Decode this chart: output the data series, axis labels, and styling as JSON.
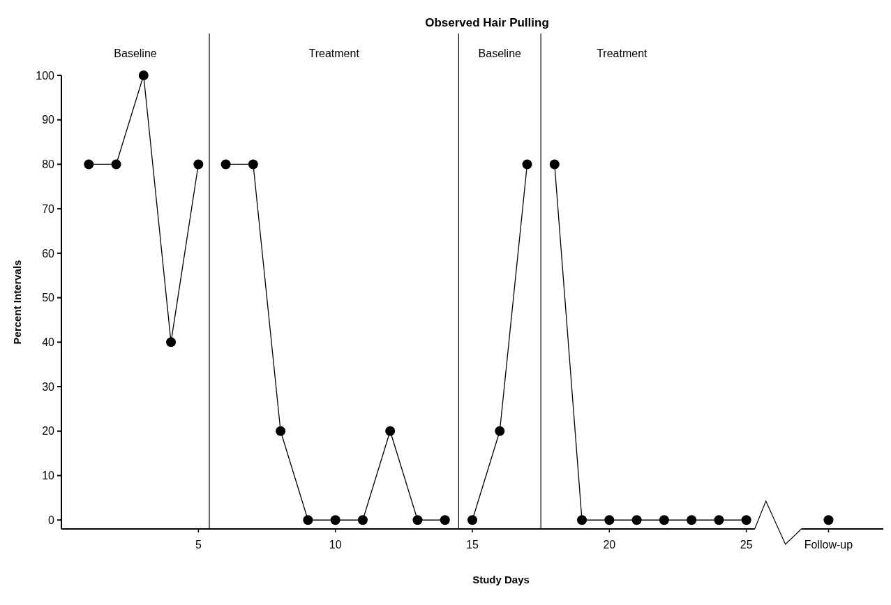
{
  "chart_data": {
    "type": "line",
    "title": "Observed Hair Pulling",
    "xlabel": "Study Days",
    "ylabel": "Percent Intervals",
    "xlim": [
      0,
      30
    ],
    "ylim": [
      -2,
      100
    ],
    "xticks": [
      5,
      10,
      15,
      20,
      25,
      {
        "value": 28,
        "label": "Follow-up"
      }
    ],
    "yticks": [
      0,
      10,
      20,
      30,
      40,
      50,
      60,
      70,
      80,
      90,
      100
    ],
    "series": [
      {
        "color": "#000000",
        "x": [
          1,
          2,
          3,
          4,
          5
        ],
        "values": [
          80,
          80,
          100,
          40,
          80
        ]
      },
      {
        "color": "#000000",
        "x": [
          6,
          7,
          8,
          9,
          10,
          11,
          12,
          13,
          14
        ],
        "values": [
          80,
          80,
          20,
          0,
          0,
          0,
          20,
          0,
          0
        ]
      },
      {
        "color": "#000000",
        "x": [
          15,
          16,
          17
        ],
        "values": [
          0,
          20,
          80
        ]
      },
      {
        "color": "#000000",
        "x": [
          18,
          19,
          20,
          21,
          22,
          23,
          24,
          25
        ],
        "values": [
          80,
          0,
          0,
          0,
          0,
          0,
          0,
          0
        ]
      },
      {
        "color": "#000000",
        "x": [
          28
        ],
        "values": [
          0
        ]
      }
    ],
    "ref_lines": [
      {
        "axis": "x",
        "value": 5.4,
        "color": "#000000"
      },
      {
        "axis": "x",
        "value": 14.5,
        "color": "#000000"
      },
      {
        "axis": "x",
        "value": 17.5,
        "color": "#000000"
      }
    ],
    "annotations": [
      "Baseline",
      "Treatment",
      "Baseline",
      "Treatment"
    ],
    "marker": "circle",
    "line_style": "solid",
    "grid": false
  }
}
